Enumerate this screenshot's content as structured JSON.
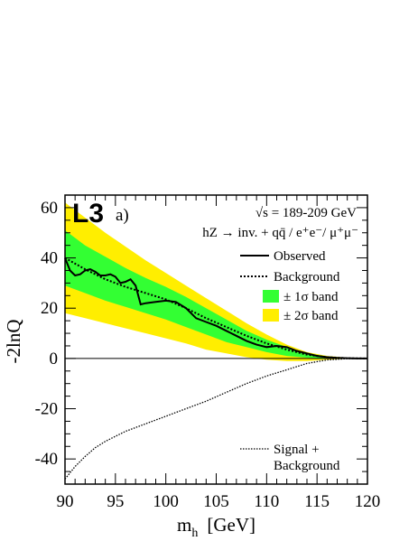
{
  "chart_data": {
    "type": "line",
    "experiment_label": "L3",
    "panel_label": "a)",
    "energy_text": "√s = 189-209 GeV",
    "process_text": "hZ → inv. + qq̄ / e⁺e⁻/ μ⁺μ⁻",
    "xlabel": "m_h  [GeV]",
    "xlabel_main": "m",
    "xlabel_sub": "h",
    "xlabel_unit": "[GeV]",
    "ylabel": "-2lnQ",
    "xlim": [
      90,
      120
    ],
    "ylim": [
      -50,
      65
    ],
    "x_ticks": [
      90,
      95,
      100,
      105,
      110,
      115,
      120
    ],
    "y_ticks": [
      -40,
      -20,
      0,
      20,
      40,
      60
    ],
    "x_tick_labels": [
      "90",
      "95",
      "100",
      "105",
      "110",
      "115",
      "120"
    ],
    "y_tick_labels": [
      "-40",
      "-20",
      "0",
      "20",
      "40",
      "60"
    ],
    "legend_placement": "right",
    "colors": {
      "band_1sigma": "#33ff33",
      "band_2sigma": "#ffee00",
      "lines": "#000000"
    },
    "series": [
      {
        "name": "Observed",
        "style": "solid",
        "x": [
          90,
          90.5,
          91,
          91.5,
          92,
          92.5,
          93,
          93.5,
          94,
          94.5,
          95,
          95.5,
          96,
          96.5,
          97,
          97.5,
          98,
          99,
          100,
          101,
          102,
          103,
          104,
          105,
          106,
          107,
          108,
          109,
          110,
          111,
          112,
          113,
          114,
          115,
          116,
          117,
          118,
          119,
          120
        ],
        "y": [
          40,
          35,
          33,
          33.5,
          35,
          35.5,
          34.5,
          33,
          33,
          33.5,
          32.5,
          30,
          30.5,
          31.5,
          29,
          21.5,
          22,
          22.5,
          23,
          22.5,
          20,
          16,
          14.5,
          13,
          11,
          9,
          7,
          5.5,
          4.5,
          5,
          4.5,
          3,
          2,
          1,
          0.5,
          0.2,
          0.1,
          0,
          0
        ]
      },
      {
        "name": "Background",
        "style": "dotted",
        "x": [
          90,
          92,
          94,
          96,
          98,
          100,
          102,
          104,
          106,
          108,
          110,
          112,
          114,
          116,
          118,
          120
        ],
        "y": [
          40,
          35.5,
          31.5,
          28.5,
          26,
          23.5,
          20,
          16,
          12.5,
          9,
          6,
          3.5,
          1.5,
          0.5,
          0.1,
          0
        ]
      },
      {
        "name": "± 1σ band",
        "style": "band",
        "x": [
          90,
          92,
          94,
          96,
          98,
          100,
          102,
          104,
          106,
          108,
          110,
          112,
          114,
          116,
          118,
          120
        ],
        "upper": [
          51,
          45,
          40.5,
          36,
          32,
          28.5,
          24.5,
          20,
          15.5,
          11,
          7.5,
          4.5,
          2,
          0.8,
          0.2,
          0
        ],
        "lower": [
          29,
          26,
          23,
          20.5,
          18,
          15.5,
          12.5,
          9.5,
          6.5,
          4.5,
          2.5,
          1,
          0.3,
          0,
          0,
          0
        ]
      },
      {
        "name": "± 2σ band",
        "style": "band",
        "x": [
          90,
          92,
          94,
          96,
          98,
          100,
          102,
          104,
          106,
          108,
          110,
          112,
          114,
          116,
          118,
          120
        ],
        "upper": [
          62,
          56,
          50,
          44.5,
          39,
          34,
          29,
          24,
          19,
          14,
          9.5,
          5.5,
          2.5,
          1,
          0.3,
          0
        ],
        "lower": [
          18,
          16,
          14,
          12,
          10,
          8,
          6,
          3.5,
          2,
          0.5,
          -0.5,
          -1,
          -1,
          -0.5,
          -0.2,
          0
        ]
      },
      {
        "name": "Signal + Background",
        "style": "dotted",
        "x": [
          90,
          91,
          92,
          93,
          94,
          95,
          96,
          98,
          100,
          102,
          104,
          106,
          108,
          110,
          112,
          114,
          116,
          118,
          120
        ],
        "y": [
          -48,
          -43,
          -39,
          -35.5,
          -33,
          -31,
          -29,
          -26,
          -23,
          -20,
          -17,
          -13.5,
          -10,
          -7,
          -4.5,
          -2,
          -0.6,
          -0.1,
          0
        ]
      }
    ],
    "legend": {
      "observed": "Observed",
      "background": "Background",
      "band1": "± 1σ band",
      "band2": "± 2σ band",
      "signal_line1": "Signal +",
      "signal_line2": "Background"
    }
  }
}
